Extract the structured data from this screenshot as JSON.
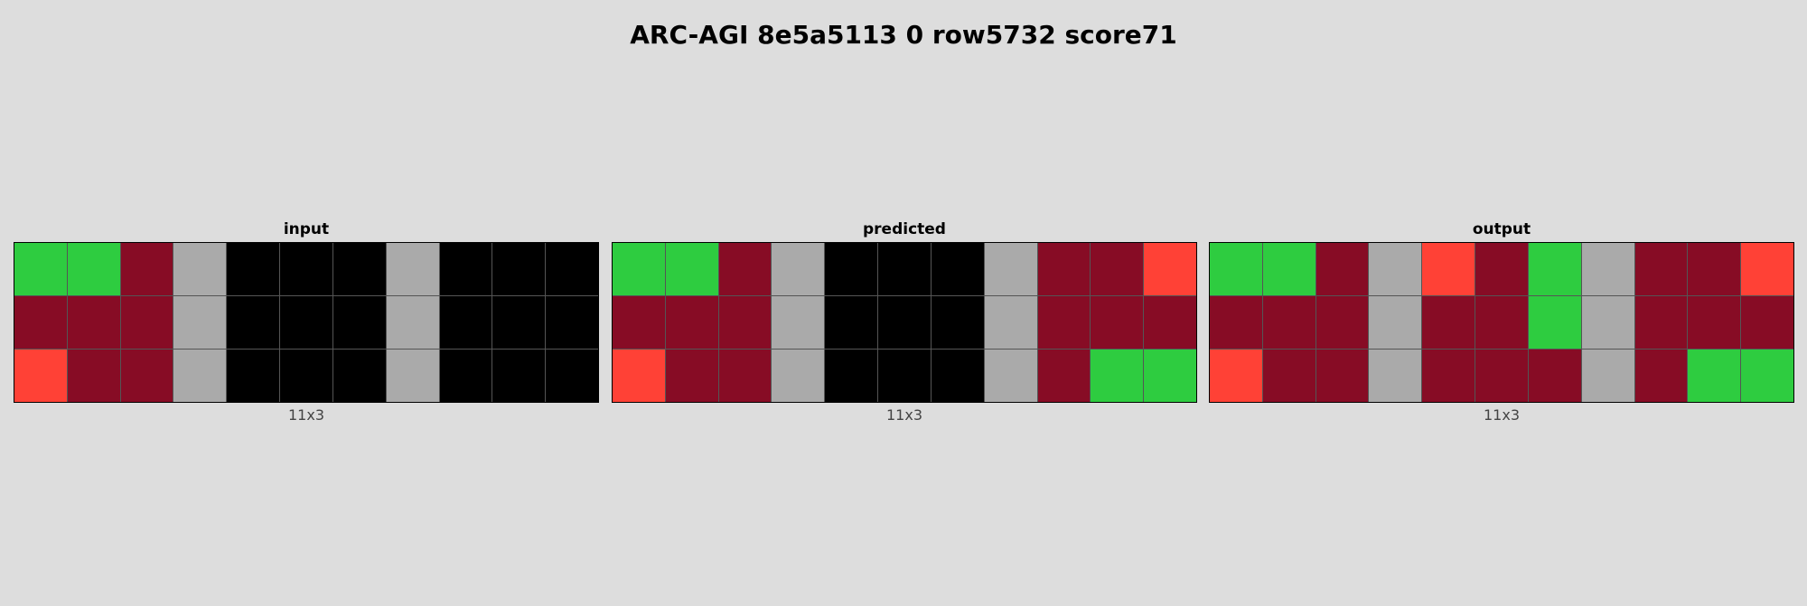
{
  "title": "ARC-AGI 8e5a5113 0 row5732 score71",
  "palette": {
    "0": "#000000",
    "2": "#ff4136",
    "3": "#2ecc40",
    "5": "#aaaaaa",
    "9": "#870c25"
  },
  "panels": [
    {
      "label": "input",
      "dims": "11x3",
      "grid": [
        [
          3,
          3,
          9,
          5,
          0,
          0,
          0,
          5,
          0,
          0,
          0
        ],
        [
          9,
          9,
          9,
          5,
          0,
          0,
          0,
          5,
          0,
          0,
          0
        ],
        [
          2,
          9,
          9,
          5,
          0,
          0,
          0,
          5,
          0,
          0,
          0
        ]
      ]
    },
    {
      "label": "predicted",
      "dims": "11x3",
      "grid": [
        [
          3,
          3,
          9,
          5,
          0,
          0,
          0,
          5,
          9,
          9,
          2
        ],
        [
          9,
          9,
          9,
          5,
          0,
          0,
          0,
          5,
          9,
          9,
          9
        ],
        [
          2,
          9,
          9,
          5,
          0,
          0,
          0,
          5,
          9,
          3,
          3
        ]
      ]
    },
    {
      "label": "output",
      "dims": "11x3",
      "grid": [
        [
          3,
          3,
          9,
          5,
          2,
          9,
          3,
          5,
          9,
          9,
          2
        ],
        [
          9,
          9,
          9,
          5,
          9,
          9,
          3,
          5,
          9,
          9,
          9
        ],
        [
          2,
          9,
          9,
          5,
          9,
          9,
          9,
          5,
          9,
          3,
          3
        ]
      ]
    }
  ]
}
